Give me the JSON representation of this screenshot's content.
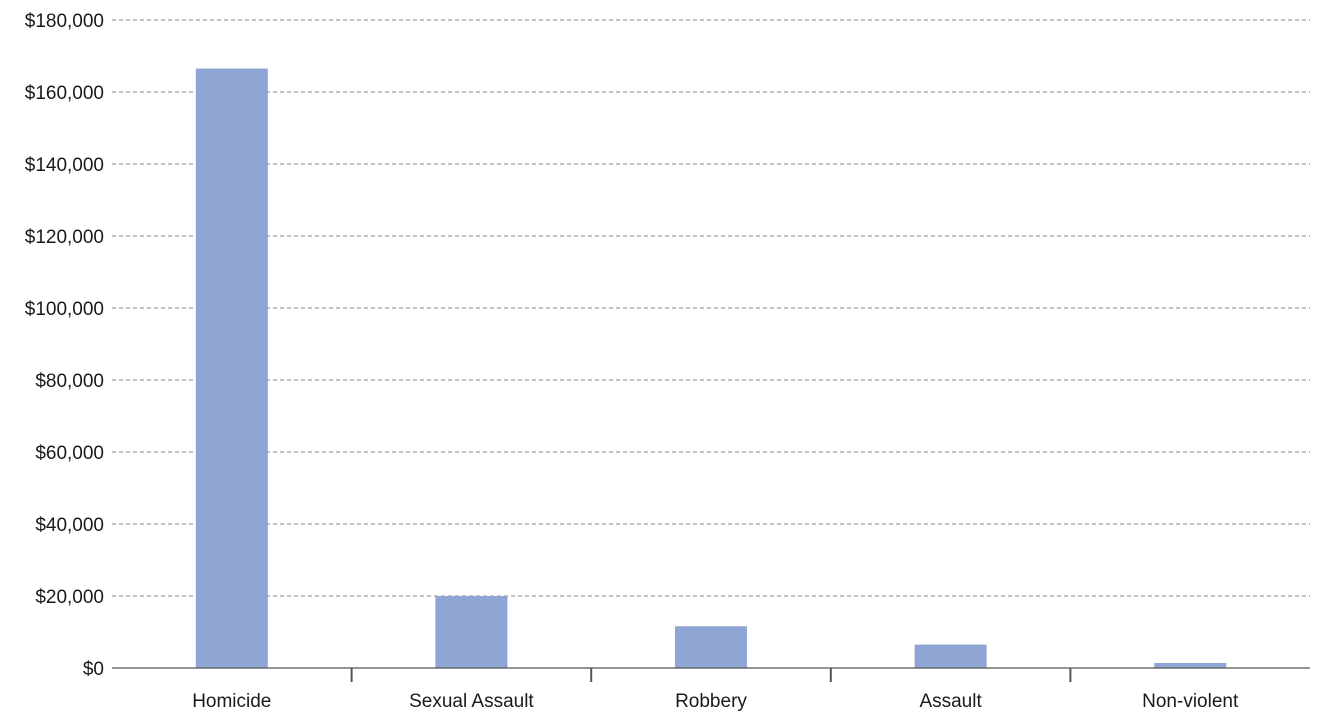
{
  "chart_data": {
    "type": "bar",
    "title": "",
    "xlabel": "",
    "ylabel": "",
    "categories": [
      "Homicide",
      "Sexual Assault",
      "Robbery",
      "Assault",
      "Non-violent"
    ],
    "values": [
      166500,
      20000,
      11600,
      6500,
      1400
    ],
    "ylim": [
      0,
      180000
    ],
    "yticks": [
      0,
      20000,
      40000,
      60000,
      80000,
      100000,
      120000,
      140000,
      160000,
      180000
    ],
    "ytick_labels": [
      "$0",
      "$20,000",
      "$40,000",
      "$60,000",
      "$80,000",
      "$100,000",
      "$120,000",
      "$140,000",
      "$160,000",
      "$180,000"
    ],
    "grid": true,
    "legend": "none",
    "colors": {
      "bar": "#8fa5d4"
    }
  }
}
